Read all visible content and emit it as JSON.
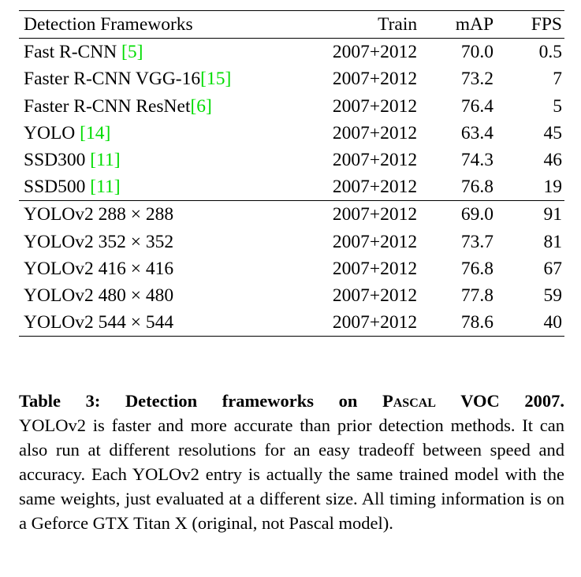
{
  "colors": {
    "citation_green": "#00dd00",
    "text": "#000000",
    "background": "#ffffff"
  },
  "table": {
    "headers": {
      "frameworks": "Detection Frameworks",
      "train": "Train",
      "map": "mAP",
      "fps": "FPS"
    },
    "group1": [
      {
        "pre": "Fast R-CNN ",
        "cite": "[5]",
        "train": "2007+2012",
        "map": "70.0",
        "fps": "0.5"
      },
      {
        "pre": "Faster R-CNN VGG-16",
        "cite": "[15]",
        "train": "2007+2012",
        "map": "73.2",
        "fps": "7"
      },
      {
        "pre": "Faster R-CNN ResNet",
        "cite": "[6]",
        "train": "2007+2012",
        "map": "76.4",
        "fps": "5"
      },
      {
        "pre": "YOLO ",
        "cite": "[14]",
        "train": "2007+2012",
        "map": "63.4",
        "fps": "45"
      },
      {
        "pre": "SSD300 ",
        "cite": "[11]",
        "train": "2007+2012",
        "map": "74.3",
        "fps": "46"
      },
      {
        "pre": "SSD500 ",
        "cite": "[11]",
        "train": "2007+2012",
        "map": "76.8",
        "fps": "19"
      }
    ],
    "group2": [
      {
        "pre": "YOLOv2 288 × 288",
        "train": "2007+2012",
        "map": "69.0",
        "fps": "91"
      },
      {
        "pre": "YOLOv2 352 × 352",
        "train": "2007+2012",
        "map": "73.7",
        "fps": "81"
      },
      {
        "pre": "YOLOv2 416 × 416",
        "train": "2007+2012",
        "map": "76.8",
        "fps": "67"
      },
      {
        "pre": "YOLOv2 480 × 480",
        "train": "2007+2012",
        "map": "77.8",
        "fps": "59"
      },
      {
        "pre": "YOLOv2 544 × 544",
        "train": "2007+2012",
        "map": "78.6",
        "fps": "40"
      }
    ]
  },
  "caption": {
    "label": "Table 3:",
    "title_pre": "Detection frameworks on",
    "title_smallcaps": "Pascal",
    "title_post": "VOC 2007.",
    "body": "YOLOv2 is faster and more accurate than prior detection methods. It can also run at different resolutions for an easy tradeoff between speed and accuracy. Each YOLOv2 entry is actually the same trained model with the same weights, just evaluated at a different size. All timing information is on a Geforce GTX Titan X (original, not Pascal model)."
  }
}
